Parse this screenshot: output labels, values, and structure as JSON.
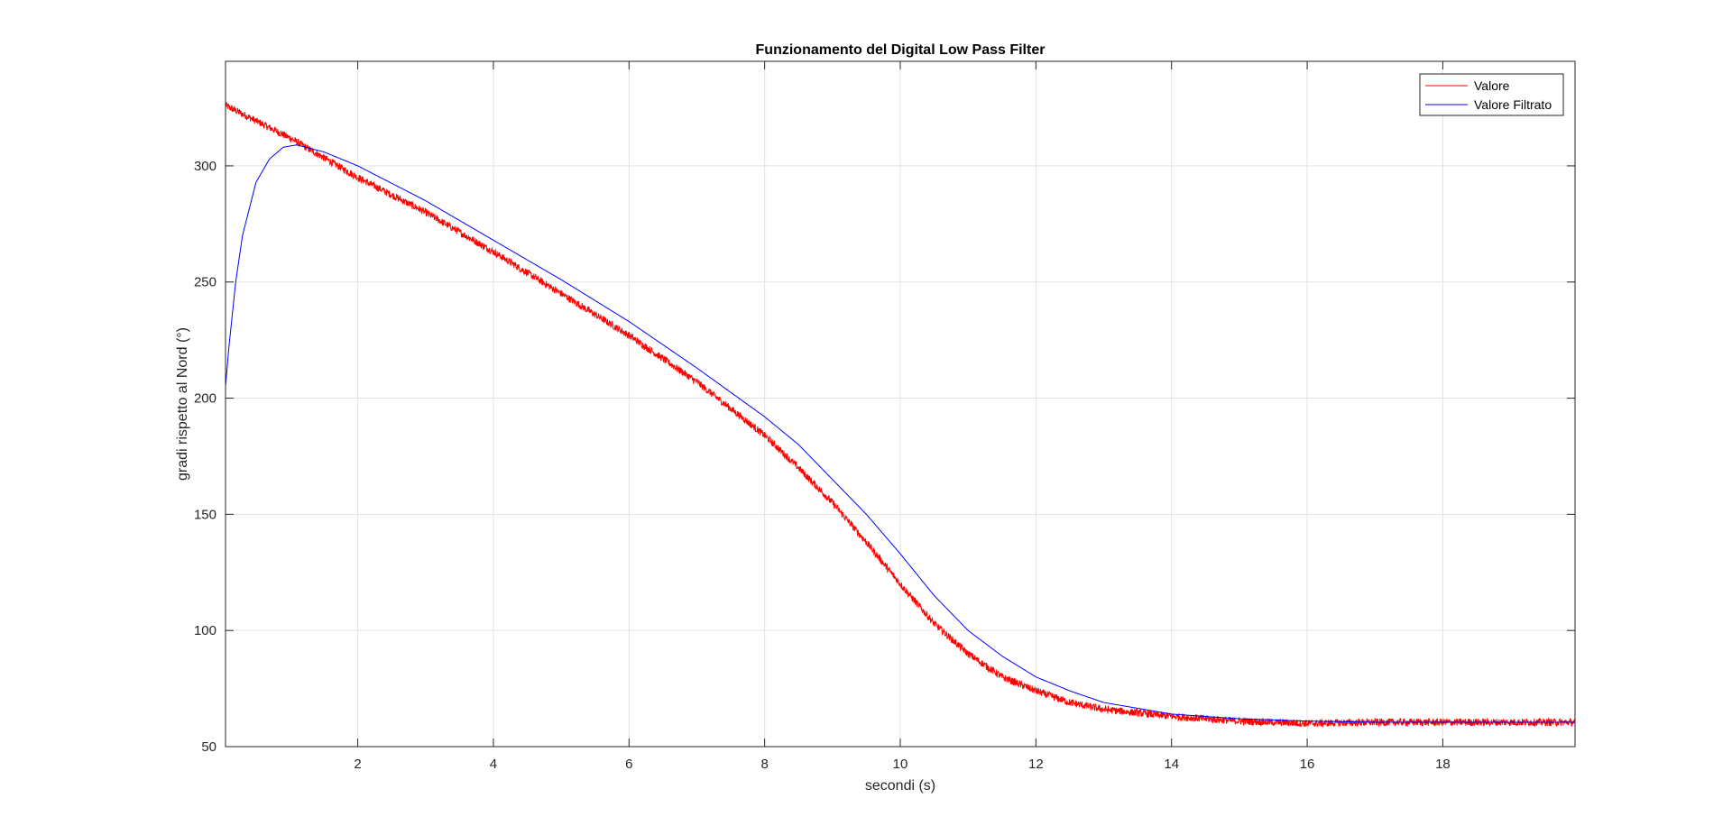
{
  "chart_data": {
    "type": "line",
    "title": "Funzionamento del Digital Low Pass Filter",
    "xlabel": "secondi (s)",
    "ylabel": "gradi rispetto al Nord (°)",
    "xlim": [
      0.05,
      19.95
    ],
    "ylim": [
      50,
      345
    ],
    "xticks": [
      2,
      4,
      6,
      8,
      10,
      12,
      14,
      16,
      18
    ],
    "yticks": [
      50,
      100,
      150,
      200,
      250,
      300
    ],
    "grid": true,
    "legend_position": "top-right",
    "series": [
      {
        "name": "Valore",
        "color": "#ff0000",
        "noise": true,
        "x": [
          0.05,
          1,
          2,
          3,
          4,
          5,
          6,
          7,
          8,
          8.5,
          9,
          9.5,
          10,
          10.5,
          11,
          11.5,
          12,
          12.5,
          13,
          14,
          15,
          16,
          17,
          18,
          19,
          19.95
        ],
        "y": [
          326,
          312,
          295,
          280,
          263,
          245,
          227,
          207,
          184,
          170,
          155,
          138,
          120,
          103,
          90,
          80,
          74,
          69,
          66,
          63,
          61,
          60,
          60.5,
          60.5,
          60.5,
          60.5
        ]
      },
      {
        "name": "Valore Filtrato",
        "color": "#0000ff",
        "noise": false,
        "x": [
          0.05,
          0.1,
          0.2,
          0.3,
          0.5,
          0.7,
          0.9,
          1.1,
          1.5,
          2,
          3,
          4,
          5,
          6,
          7,
          8,
          8.5,
          9,
          9.5,
          10,
          10.5,
          11,
          11.5,
          12,
          12.5,
          13,
          14,
          15,
          16,
          17,
          18,
          19,
          19.95
        ],
        "y": [
          205,
          222,
          250,
          270,
          293,
          303,
          308,
          309,
          306,
          300,
          285,
          268,
          251,
          233,
          213,
          192,
          180,
          165,
          150,
          133,
          115,
          100,
          89,
          80,
          74,
          69,
          64,
          62,
          61,
          60.5,
          60.5,
          60.5,
          60.5
        ]
      }
    ]
  }
}
